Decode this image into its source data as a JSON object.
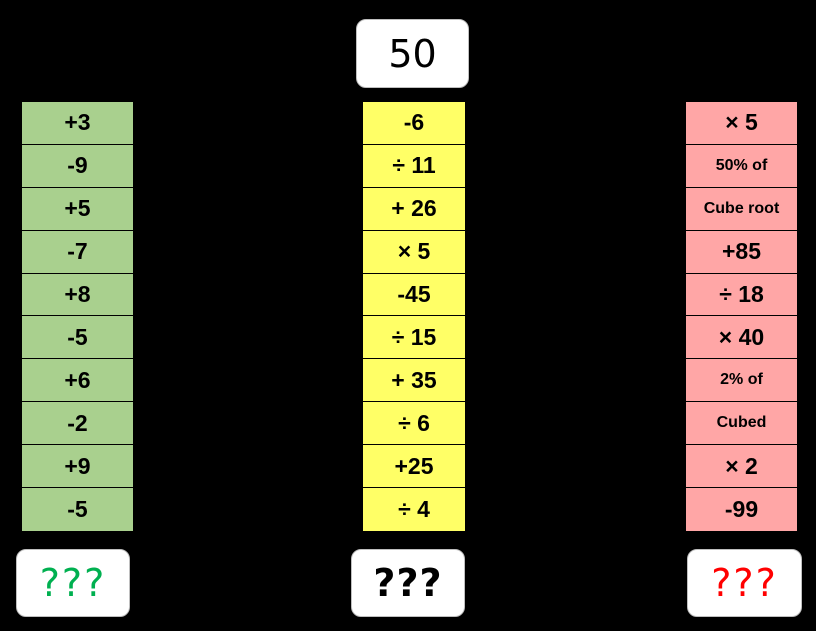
{
  "start_value": "50",
  "answers": {
    "green": "???",
    "yellow": "???",
    "red": "???"
  },
  "colors": {
    "green": "#a9d08e",
    "yellow": "#ffff66",
    "red": "#ffa6a6",
    "green_text": "#00b050",
    "red_text": "#ff0000"
  },
  "columns": {
    "green": [
      "+3",
      "-9",
      "+5",
      "-7",
      "+8",
      "-5",
      "+6",
      "-2",
      "+9",
      "-5"
    ],
    "yellow": [
      "-6",
      "÷ 11",
      "+ 26",
      "× 5",
      "-45",
      "÷ 15",
      "+ 35",
      "÷ 6",
      "+25",
      "÷ 4"
    ],
    "red": [
      "× 5",
      "50% of",
      "Cube root",
      "+85",
      "÷ 18",
      "× 40",
      "2% of",
      "Cubed",
      "× 2",
      "-99"
    ]
  }
}
